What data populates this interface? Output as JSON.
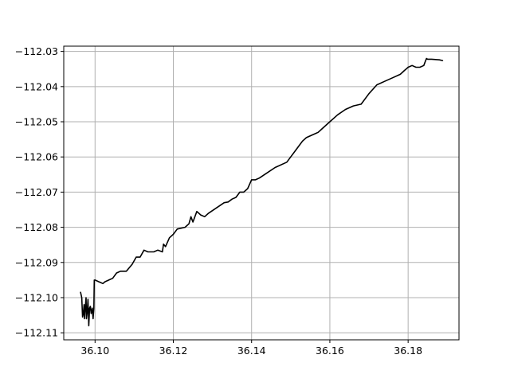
{
  "chart_data": {
    "type": "line",
    "title": "",
    "xlabel": "",
    "ylabel": "",
    "xlim": [
      36.092,
      36.193
    ],
    "ylim": [
      -112.112,
      -112.0285
    ],
    "grid": true,
    "x_ticks": [
      36.1,
      36.12,
      36.14,
      36.16,
      36.18
    ],
    "y_ticks": [
      -112.03,
      -112.04,
      -112.05,
      -112.06,
      -112.07,
      -112.08,
      -112.09,
      -112.1,
      -112.11
    ],
    "x_tick_labels": [
      "36.10",
      "36.12",
      "36.14",
      "36.16",
      "36.18"
    ],
    "y_tick_labels": [
      "−112.03",
      "−112.04",
      "−112.05",
      "−112.06",
      "−112.07",
      "−112.08",
      "−112.09",
      "−112.10",
      "−112.11"
    ],
    "series": [
      {
        "color": "#000000",
        "x": [
          36.0963,
          36.0966,
          36.0968,
          36.097,
          36.0972,
          36.0973,
          36.0975,
          36.0977,
          36.0978,
          36.098,
          36.0982,
          36.0984,
          36.0986,
          36.0988,
          36.099,
          36.0993,
          36.0995,
          36.0997,
          36.0998,
          36.1,
          36.101,
          36.102,
          36.1025,
          36.1035,
          36.1045,
          36.1055,
          36.1065,
          36.108,
          36.1095,
          36.1105,
          36.1115,
          36.1125,
          36.1135,
          36.114,
          36.115,
          36.116,
          36.1172,
          36.1175,
          36.118,
          36.119,
          36.12,
          36.121,
          36.123,
          36.124,
          36.1245,
          36.125,
          36.126,
          36.127,
          36.128,
          36.129,
          36.131,
          36.133,
          36.134,
          36.135,
          36.136,
          36.137,
          36.138,
          36.139,
          36.14,
          36.141,
          36.142,
          36.144,
          36.146,
          36.149,
          36.15,
          36.151,
          36.152,
          36.153,
          36.154,
          36.156,
          36.157,
          36.158,
          36.16,
          36.162,
          36.164,
          36.166,
          36.168,
          36.17,
          36.172,
          36.174,
          36.176,
          36.178,
          36.179,
          36.18,
          36.181,
          36.182,
          36.183,
          36.184,
          36.1845,
          36.1847,
          36.185,
          36.186,
          36.187,
          36.188,
          36.1888
        ],
        "y": [
          -112.0985,
          -112.1,
          -112.1055,
          -112.1045,
          -112.102,
          -112.106,
          -112.103,
          -112.1,
          -112.106,
          -112.104,
          -112.1005,
          -112.108,
          -112.103,
          -112.1025,
          -112.1045,
          -112.103,
          -112.106,
          -112.103,
          -112.095,
          -112.095,
          -112.0955,
          -112.096,
          -112.0955,
          -112.095,
          -112.0945,
          -112.093,
          -112.0925,
          -112.0925,
          -112.0905,
          -112.0885,
          -112.0885,
          -112.0865,
          -112.087,
          -112.087,
          -112.087,
          -112.0865,
          -112.087,
          -112.0848,
          -112.0855,
          -112.083,
          -112.082,
          -112.0805,
          -112.08,
          -112.079,
          -112.077,
          -112.0785,
          -112.0755,
          -112.0765,
          -112.077,
          -112.076,
          -112.0745,
          -112.073,
          -112.0728,
          -112.072,
          -112.0715,
          -112.07,
          -112.07,
          -112.069,
          -112.0665,
          -112.0665,
          -112.066,
          -112.0645,
          -112.063,
          -112.0615,
          -112.06,
          -112.0585,
          -112.057,
          -112.0555,
          -112.0545,
          -112.0535,
          -112.053,
          -112.052,
          -112.05,
          -112.048,
          -112.0465,
          -112.0455,
          -112.045,
          -112.042,
          -112.0395,
          -112.0385,
          -112.0375,
          -112.0365,
          -112.0355,
          -112.0345,
          -112.034,
          -112.0345,
          -112.0345,
          -112.034,
          -112.0325,
          -112.032,
          -112.0322,
          -112.0322,
          -112.0323,
          -112.0324,
          -112.0326
        ]
      }
    ]
  }
}
